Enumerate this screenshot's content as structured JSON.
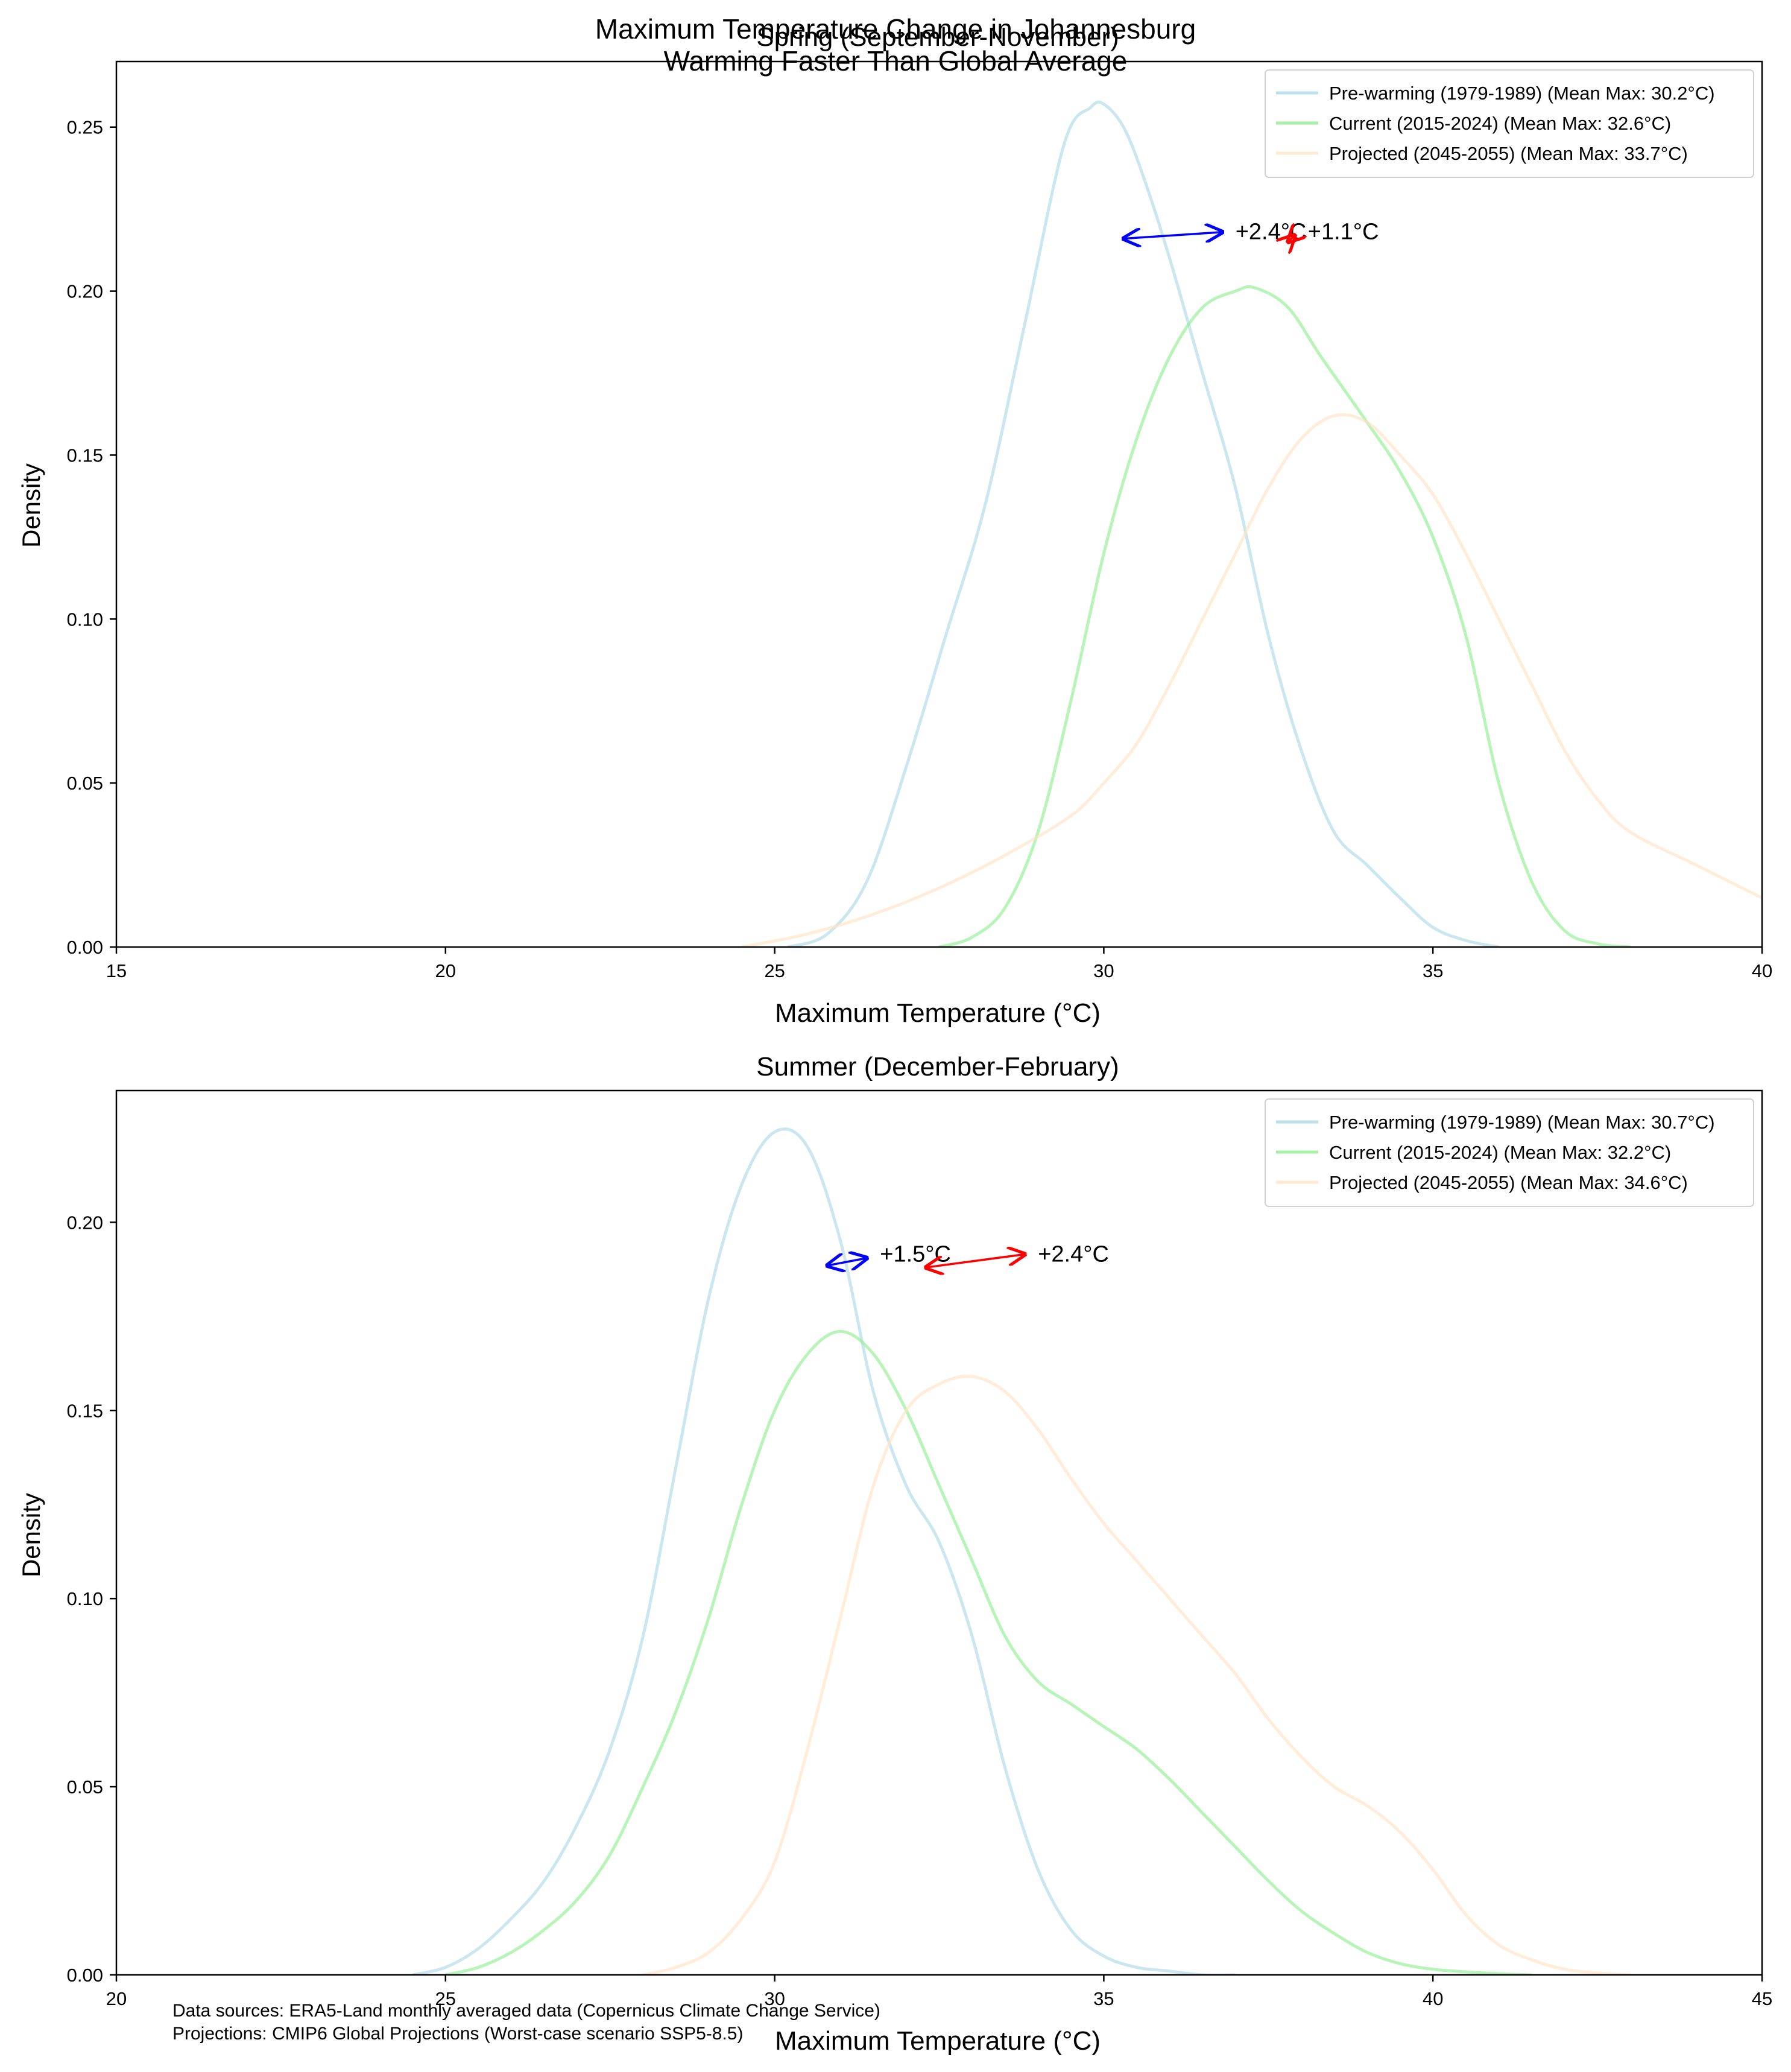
{
  "figure": {
    "suptitle_line1": "Maximum Temperature Change in Johannesburg",
    "suptitle_line2": "Warming Faster Than Global Average",
    "footnote_line1": "Data sources: ERA5-Land monthly averaged data (Copernicus Climate Change Service)",
    "footnote_line2": "Projections: CMIP6 Global Projections (Worst-case scenario SSP5-8.5)"
  },
  "chart_data": [
    {
      "type": "line",
      "title": "Spring (September-November)",
      "xlabel": "Maximum Temperature (°C)",
      "ylabel": "Density",
      "xlim": [
        15,
        40
      ],
      "ylim": [
        0,
        0.27
      ],
      "xticks": [
        "15",
        "20",
        "25",
        "30",
        "35",
        "40"
      ],
      "yticks": [
        "0.00",
        "0.05",
        "0.10",
        "0.15",
        "0.20",
        "0.25"
      ],
      "grid": false,
      "legend_position": "top-right",
      "series": [
        {
          "name": "Pre-warming (1979-1989) (Mean Max: 30.2°C)",
          "color": "#add8e6",
          "x": [
            25.2,
            25.8,
            26.4,
            27.0,
            27.6,
            28.2,
            28.8,
            29.4,
            29.8,
            30.0,
            30.3,
            30.6,
            31.0,
            31.5,
            32.0,
            32.5,
            33.0,
            33.5,
            34.0,
            34.5,
            35.0,
            35.5,
            36.0
          ],
          "y": [
            0.0,
            0.004,
            0.02,
            0.055,
            0.095,
            0.135,
            0.19,
            0.245,
            0.256,
            0.257,
            0.25,
            0.235,
            0.21,
            0.175,
            0.14,
            0.095,
            0.06,
            0.035,
            0.025,
            0.015,
            0.006,
            0.002,
            0.0
          ]
        },
        {
          "name": "Current (2015-2024) (Mean Max: 32.6°C)",
          "color": "#90ee90",
          "x": [
            27.5,
            28.0,
            28.5,
            29.0,
            29.5,
            30.0,
            30.5,
            31.0,
            31.5,
            32.0,
            32.3,
            32.8,
            33.3,
            34.0,
            34.5,
            35.0,
            35.5,
            36.0,
            36.5,
            37.0,
            37.5,
            38.0
          ],
          "y": [
            0.0,
            0.003,
            0.012,
            0.035,
            0.075,
            0.12,
            0.155,
            0.18,
            0.195,
            0.2,
            0.201,
            0.195,
            0.18,
            0.16,
            0.145,
            0.125,
            0.095,
            0.05,
            0.02,
            0.005,
            0.001,
            0.0
          ]
        },
        {
          "name": "Projected (2045-2055) (Mean Max: 33.7°C)",
          "color": "#ffe4c4",
          "x": [
            24.5,
            25.5,
            26.5,
            27.5,
            28.5,
            29.5,
            30.0,
            30.5,
            31.0,
            31.5,
            32.0,
            32.5,
            33.0,
            33.5,
            34.0,
            34.5,
            35.0,
            35.5,
            36.0,
            36.5,
            37.0,
            37.5,
            38.0,
            39.0,
            40.0
          ],
          "y": [
            0.0,
            0.004,
            0.01,
            0.018,
            0.028,
            0.04,
            0.05,
            0.062,
            0.08,
            0.1,
            0.12,
            0.14,
            0.155,
            0.162,
            0.16,
            0.15,
            0.138,
            0.12,
            0.1,
            0.08,
            0.06,
            0.045,
            0.035,
            0.025,
            0.015
          ]
        }
      ],
      "annotations": [
        {
          "label": "+2.4°C",
          "color": "#0000ff",
          "x1": 30.3,
          "y1": 0.216,
          "x2": 31.8,
          "y2": 0.218,
          "tx": 32.0,
          "ty": 0.218
        },
        {
          "label": "+1.1°C",
          "color": "#ff0000",
          "x1": 32.8,
          "y1": 0.215,
          "x2": 32.9,
          "y2": 0.217,
          "tx": 33.1,
          "ty": 0.218
        }
      ]
    },
    {
      "type": "line",
      "title": "Summer (December-February)",
      "xlabel": "Maximum Temperature (°C)",
      "ylabel": "Density",
      "xlim": [
        20,
        45
      ],
      "ylim": [
        0,
        0.235
      ],
      "xticks": [
        "20",
        "25",
        "30",
        "35",
        "40",
        "45"
      ],
      "yticks": [
        "0.00",
        "0.05",
        "0.10",
        "0.15",
        "0.20"
      ],
      "grid": false,
      "legend_position": "top-right",
      "series": [
        {
          "name": "Pre-warming (1979-1989) (Mean Max: 30.7°C)",
          "color": "#add8e6",
          "x": [
            24.5,
            25.0,
            25.5,
            26.0,
            26.5,
            27.0,
            27.5,
            28.0,
            28.5,
            29.0,
            29.5,
            30.0,
            30.5,
            31.0,
            31.5,
            32.0,
            32.5,
            33.0,
            33.5,
            34.0,
            34.5,
            35.0,
            35.5,
            36.0,
            36.5,
            37.0
          ],
          "y": [
            0.0,
            0.002,
            0.007,
            0.015,
            0.025,
            0.04,
            0.06,
            0.09,
            0.135,
            0.18,
            0.21,
            0.224,
            0.22,
            0.195,
            0.155,
            0.13,
            0.115,
            0.09,
            0.055,
            0.028,
            0.012,
            0.005,
            0.002,
            0.001,
            0.0,
            0.0
          ]
        },
        {
          "name": "Current (2015-2024) (Mean Max: 32.2°C)",
          "color": "#90ee90",
          "x": [
            25.0,
            25.5,
            26.0,
            26.5,
            27.0,
            27.5,
            28.0,
            28.5,
            29.0,
            29.5,
            30.0,
            30.5,
            31.0,
            31.5,
            32.0,
            32.5,
            33.0,
            33.5,
            34.0,
            34.5,
            35.0,
            35.5,
            36.0,
            36.5,
            37.0,
            37.5,
            38.0,
            38.5,
            39.0,
            39.5,
            40.0,
            40.5,
            41.0,
            41.5
          ],
          "y": [
            0.0,
            0.002,
            0.006,
            0.012,
            0.02,
            0.032,
            0.05,
            0.07,
            0.095,
            0.125,
            0.15,
            0.165,
            0.171,
            0.165,
            0.15,
            0.13,
            0.11,
            0.09,
            0.078,
            0.072,
            0.066,
            0.06,
            0.052,
            0.043,
            0.034,
            0.025,
            0.017,
            0.011,
            0.006,
            0.003,
            0.0015,
            0.0008,
            0.0003,
            0.0
          ]
        },
        {
          "name": "Projected (2045-2055) (Mean Max: 34.6°C)",
          "color": "#ffe4c4",
          "x": [
            28.0,
            28.5,
            29.0,
            29.5,
            30.0,
            30.5,
            31.0,
            31.5,
            32.0,
            32.5,
            33.0,
            33.5,
            34.0,
            34.5,
            35.0,
            35.5,
            36.0,
            36.5,
            37.0,
            37.5,
            38.0,
            38.5,
            39.0,
            39.5,
            40.0,
            40.5,
            41.0,
            41.5,
            42.0,
            42.5,
            43.0
          ],
          "y": [
            0.0,
            0.002,
            0.006,
            0.015,
            0.03,
            0.06,
            0.095,
            0.13,
            0.15,
            0.157,
            0.159,
            0.155,
            0.145,
            0.132,
            0.12,
            0.11,
            0.1,
            0.09,
            0.08,
            0.068,
            0.058,
            0.05,
            0.045,
            0.038,
            0.028,
            0.016,
            0.008,
            0.004,
            0.0015,
            0.0005,
            0.0
          ]
        }
      ],
      "annotations": [
        {
          "label": "+1.5°C",
          "color": "#0000ff",
          "x1": 30.8,
          "y1": 0.1885,
          "x2": 31.4,
          "y2": 0.1905,
          "tx": 31.6,
          "ty": 0.1915
        },
        {
          "label": "+2.4°C",
          "color": "#ff0000",
          "x1": 32.3,
          "y1": 0.188,
          "x2": 33.8,
          "y2": 0.1915,
          "tx": 34.0,
          "ty": 0.1915
        }
      ]
    }
  ]
}
